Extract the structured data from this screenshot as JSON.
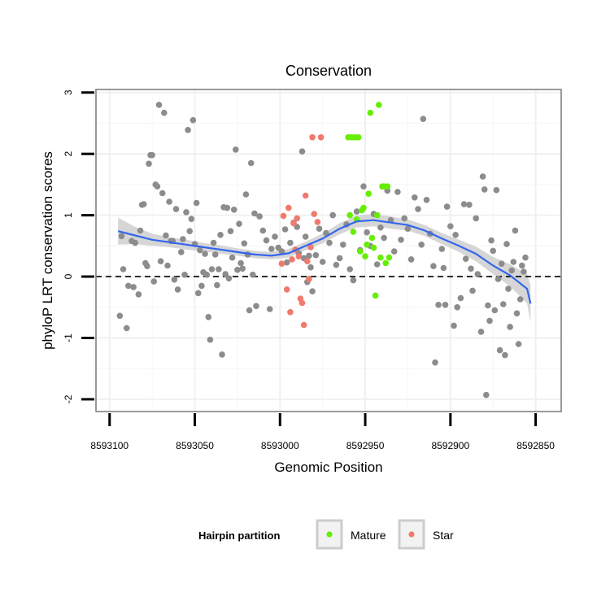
{
  "chart_data": {
    "type": "scatter",
    "title": "Conservation",
    "xlabel": "Genomic Position",
    "ylabel": "phyloP LRT conservation scores",
    "x_reversed": true,
    "xlim": [
      8593108,
      8592835
    ],
    "ylim": [
      -2.2,
      3.05
    ],
    "x_ticks": [
      8593100,
      8593050,
      8593000,
      8592950,
      8592900,
      8592850
    ],
    "x_tick_labels": [
      "8593100",
      "8593050",
      "8593000",
      "8592950",
      "8592900",
      "8592850"
    ],
    "y_ticks": [
      -2,
      -1,
      0,
      1,
      2,
      3
    ],
    "y_tick_labels": [
      "-2",
      "-1",
      "0",
      "1",
      "2",
      "3"
    ],
    "reference_line": {
      "y": 0,
      "style": "dashed"
    },
    "legend": {
      "title": "Hairpin partition",
      "position": "bottom",
      "entries": [
        {
          "label": "Mature",
          "color": "#66ee00"
        },
        {
          "label": "Star",
          "color": "#f07a6e"
        }
      ]
    },
    "colors": {
      "other": "#8c8c8c",
      "Mature": "#66ee00",
      "Star": "#f07a6e",
      "smooth": "#3366ee",
      "band": "#cfcfcf"
    },
    "series": [
      {
        "name": "Other",
        "points": [
          [
            8593094,
            -0.64
          ],
          [
            8593093,
            0.66
          ],
          [
            8593092,
            0.12
          ],
          [
            8593090,
            -0.84
          ],
          [
            8593089,
            -0.15
          ],
          [
            8593087,
            0.58
          ],
          [
            8593086,
            -0.17
          ],
          [
            8593085,
            0.55
          ],
          [
            8593083,
            -0.29
          ],
          [
            8593082,
            0.75
          ],
          [
            8593081,
            1.17
          ],
          [
            8593080,
            1.18
          ],
          [
            8593079,
            0.22
          ],
          [
            8593078,
            0.17
          ],
          [
            8593077,
            1.84
          ],
          [
            8593076,
            1.98
          ],
          [
            8593075,
            1.98
          ],
          [
            8593074,
            -0.08
          ],
          [
            8593073,
            1.5
          ],
          [
            8593072,
            1.47
          ],
          [
            8593071,
            2.8
          ],
          [
            8593070,
            0.25
          ],
          [
            8593069,
            1.36
          ],
          [
            8593068,
            2.67
          ],
          [
            8593067,
            0.67
          ],
          [
            8593066,
            0.18
          ],
          [
            8593065,
            1.22
          ],
          [
            8593064,
            0.58
          ],
          [
            8593063,
            0.58
          ],
          [
            8593062,
            -0.05
          ],
          [
            8593061,
            1.1
          ],
          [
            8593060,
            -0.21
          ],
          [
            8593058,
            0.4
          ],
          [
            8593057,
            0.61
          ],
          [
            8593056,
            0.03
          ],
          [
            8593055,
            1.05
          ],
          [
            8593054,
            2.39
          ],
          [
            8593053,
            0.74
          ],
          [
            8593052,
            0.94
          ],
          [
            8593051,
            2.55
          ],
          [
            8593050,
            0.53
          ],
          [
            8593049,
            1.2
          ],
          [
            8593048,
            -0.27
          ],
          [
            8593047,
            0.43
          ],
          [
            8593046,
            -0.15
          ],
          [
            8593045,
            0.07
          ],
          [
            8593044,
            0.37
          ],
          [
            8593043,
            0.03
          ],
          [
            8593042,
            -0.66
          ],
          [
            8593041,
            -1.03
          ],
          [
            8593040,
            0.12
          ],
          [
            8593039,
            0.55
          ],
          [
            8593038,
            0.36
          ],
          [
            8593037,
            -0.14
          ],
          [
            8593036,
            0.12
          ],
          [
            8593035,
            0.68
          ],
          [
            8593034,
            -1.27
          ],
          [
            8593033,
            1.13
          ],
          [
            8593032,
            0.04
          ],
          [
            8593031,
            1.12
          ],
          [
            8593030,
            -0.03
          ],
          [
            8593029,
            0.74
          ],
          [
            8593028,
            0.31
          ],
          [
            8593027,
            1.09
          ],
          [
            8593026,
            2.07
          ],
          [
            8593025,
            0.11
          ],
          [
            8593024,
            0.86
          ],
          [
            8593023,
            0.22
          ],
          [
            8593022,
            0.13
          ],
          [
            8593021,
            0.54
          ],
          [
            8593020,
            1.34
          ],
          [
            8593019,
            0.36
          ],
          [
            8593018,
            -0.55
          ],
          [
            8593017,
            1.85
          ],
          [
            8593016,
            0.03
          ],
          [
            8593015,
            1.03
          ],
          [
            8593014,
            -0.48
          ],
          [
            8593012,
            0.98
          ],
          [
            8593010,
            0.75
          ],
          [
            8593008,
            0.59
          ],
          [
            8593006,
            -0.53
          ],
          [
            8593005,
            0.45
          ],
          [
            8593003,
            0.65
          ],
          [
            8593001,
            0.47
          ],
          [
            8592999,
            0.41
          ],
          [
            8592997,
            0.77
          ],
          [
            8592996,
            0.23
          ],
          [
            8592994,
            0.55
          ],
          [
            8592992,
            0.88
          ],
          [
            8592990,
            0.81
          ],
          [
            8592989,
            0.38
          ],
          [
            8592987,
            2.04
          ],
          [
            8592986,
            0.3
          ],
          [
            8592985,
            0.65
          ],
          [
            8592984,
            -0.09
          ],
          [
            8592983,
            0.34
          ],
          [
            8592982,
            0.15
          ],
          [
            8592981,
            -0.24
          ],
          [
            8592979,
            0.35
          ],
          [
            8592977,
            0.78
          ],
          [
            8592975,
            0.24
          ],
          [
            8592973,
            0.71
          ],
          [
            8592971,
            0.55
          ],
          [
            8592969,
            1.0
          ],
          [
            8592967,
            0.19
          ],
          [
            8592965,
            0.3
          ],
          [
            8592963,
            0.52
          ],
          [
            8592961,
            0.85
          ],
          [
            8592959,
            0.12
          ],
          [
            8592957,
            -0.06
          ],
          [
            8592955,
            1.06
          ],
          [
            8592953,
            0.43
          ],
          [
            8592951,
            1.47
          ],
          [
            8592949,
            0.72
          ],
          [
            8592947,
            0.5
          ],
          [
            8592945,
            1.02
          ],
          [
            8592943,
            0.2
          ],
          [
            8592941,
            0.8
          ],
          [
            8592939,
            0.63
          ],
          [
            8592937,
            1.4
          ],
          [
            8592935,
            0.92
          ],
          [
            8592933,
            0.41
          ],
          [
            8592931,
            1.38
          ],
          [
            8592929,
            0.6
          ],
          [
            8592927,
            0.95
          ],
          [
            8592925,
            0.78
          ],
          [
            8592923,
            0.28
          ],
          [
            8592921,
            1.29
          ],
          [
            8592919,
            1.1
          ],
          [
            8592917,
            0.52
          ],
          [
            8592916,
            2.57
          ],
          [
            8592914,
            1.25
          ],
          [
            8592912,
            0.7
          ],
          [
            8592910,
            0.17
          ],
          [
            8592909,
            -1.4
          ],
          [
            8592907,
            -0.46
          ],
          [
            8592905,
            0.45
          ],
          [
            8592904,
            0.14
          ],
          [
            8592903,
            -0.46
          ],
          [
            8592902,
            1.14
          ],
          [
            8592900,
            0.82
          ],
          [
            8592898,
            -0.8
          ],
          [
            8592897,
            0.68
          ],
          [
            8592896,
            -0.5
          ],
          [
            8592894,
            -0.35
          ],
          [
            8592892,
            1.18
          ],
          [
            8592891,
            0.29
          ],
          [
            8592889,
            1.17
          ],
          [
            8592888,
            0.13
          ],
          [
            8592887,
            -0.23
          ],
          [
            8592885,
            0.95
          ],
          [
            8592884,
            0.04
          ],
          [
            8592882,
            -0.9
          ],
          [
            8592881,
            1.63
          ],
          [
            8592880,
            1.42
          ],
          [
            8592879,
            -1.93
          ],
          [
            8592878,
            -0.47
          ],
          [
            8592877,
            -0.72
          ],
          [
            8592876,
            0.59
          ],
          [
            8592875,
            0.42
          ],
          [
            8592874,
            -0.55
          ],
          [
            8592873,
            1.41
          ],
          [
            8592872,
            -0.04
          ],
          [
            8592871,
            -1.2
          ],
          [
            8592870,
            0.21
          ],
          [
            8592869,
            -0.45
          ],
          [
            8592868,
            -1.28
          ],
          [
            8592867,
            0.53
          ],
          [
            8592866,
            -0.2
          ],
          [
            8592865,
            -0.82
          ],
          [
            8592864,
            0.1
          ],
          [
            8592863,
            0.24
          ],
          [
            8592862,
            0.75
          ],
          [
            8592861,
            -0.6
          ],
          [
            8592860,
            -1.1
          ],
          [
            8592859,
            -0.37
          ],
          [
            8592858,
            0.18
          ],
          [
            8592857,
            0.08
          ],
          [
            8592856,
            0.31
          ]
        ]
      },
      {
        "name": "Mature",
        "points": [
          [
            8592960,
            2.27
          ],
          [
            8592959,
            1.0
          ],
          [
            8592958,
            2.27
          ],
          [
            8592957,
            0.73
          ],
          [
            8592956,
            2.27
          ],
          [
            8592955,
            0.93
          ],
          [
            8592954,
            2.27
          ],
          [
            8592953,
            0.41
          ],
          [
            8592952,
            1.08
          ],
          [
            8592951,
            1.12
          ],
          [
            8592950,
            0.33
          ],
          [
            8592949,
            0.52
          ],
          [
            8592948,
            1.35
          ],
          [
            8592947,
            2.67
          ],
          [
            8592946,
            0.63
          ],
          [
            8592945,
            0.47
          ],
          [
            8592944,
            -0.31
          ],
          [
            8592943,
            1.0
          ],
          [
            8592942,
            2.8
          ],
          [
            8592941,
            0.31
          ],
          [
            8592940,
            1.47
          ],
          [
            8592939,
            1.47
          ],
          [
            8592938,
            0.22
          ],
          [
            8592937,
            1.47
          ],
          [
            8592936,
            0.31
          ]
        ]
      },
      {
        "name": "Star",
        "points": [
          [
            8592999,
            0.21
          ],
          [
            8592998,
            0.99
          ],
          [
            8592996,
            -0.21
          ],
          [
            8592995,
            1.12
          ],
          [
            8592994,
            -0.58
          ],
          [
            8592993,
            0.28
          ],
          [
            8592992,
            0.87
          ],
          [
            8592991,
            0.44
          ],
          [
            8592990,
            0.95
          ],
          [
            8592989,
            0.33
          ],
          [
            8592988,
            -0.36
          ],
          [
            8592987,
            -0.43
          ],
          [
            8592986,
            -0.79
          ],
          [
            8592985,
            1.32
          ],
          [
            8592984,
            0.25
          ],
          [
            8592983,
            -0.04
          ],
          [
            8592982,
            0.48
          ],
          [
            8592981,
            2.27
          ],
          [
            8592980,
            1.02
          ],
          [
            8592978,
            0.89
          ],
          [
            8592976,
            2.27
          ]
        ]
      }
    ],
    "smooth": {
      "x": [
        8593095,
        8593085,
        8593075,
        8593065,
        8593055,
        8593045,
        8593035,
        8593025,
        8593015,
        8593005,
        8592995,
        8592985,
        8592975,
        8592965,
        8592955,
        8592945,
        8592935,
        8592925,
        8592915,
        8592905,
        8592895,
        8592885,
        8592875,
        8592865,
        8592855,
        8592853
      ],
      "y": [
        0.74,
        0.67,
        0.6,
        0.56,
        0.52,
        0.48,
        0.44,
        0.4,
        0.36,
        0.34,
        0.38,
        0.5,
        0.62,
        0.78,
        0.9,
        0.92,
        0.88,
        0.84,
        0.75,
        0.62,
        0.5,
        0.37,
        0.18,
        0.02,
        -0.2,
        -0.44
      ],
      "band": [
        0.22,
        0.14,
        0.1,
        0.08,
        0.08,
        0.07,
        0.07,
        0.06,
        0.06,
        0.06,
        0.07,
        0.07,
        0.08,
        0.09,
        0.1,
        0.1,
        0.1,
        0.09,
        0.09,
        0.09,
        0.1,
        0.12,
        0.14,
        0.18,
        0.24,
        0.3
      ]
    }
  }
}
